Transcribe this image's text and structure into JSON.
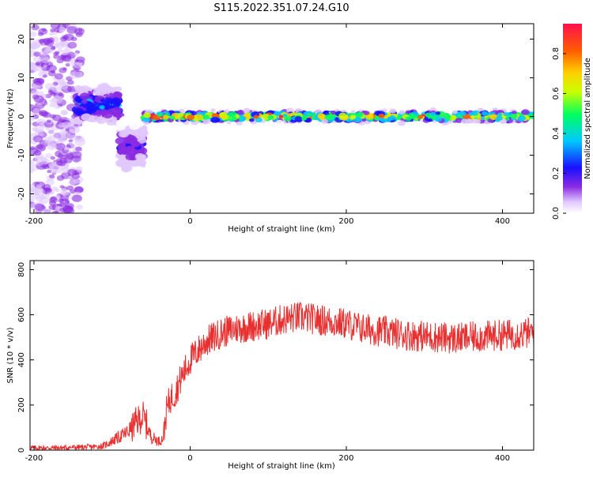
{
  "title": "S115.2022.351.07.24.G10",
  "colors": {
    "snr_line": "#e83030",
    "axis": "#000000",
    "colormap": [
      "#ffffff",
      "#e0c8ff",
      "#8a2be2",
      "#1a10ff",
      "#00c8ff",
      "#00ff60",
      "#c8ff00",
      "#ffd000",
      "#ff5a00",
      "#ff1050"
    ]
  },
  "chart_data": [
    {
      "type": "heatmap",
      "name": "spectrogram",
      "xlabel": "Height of straight line (km)",
      "ylabel": "Frequency (Hz)",
      "xlim": [
        -205,
        440
      ],
      "ylim": [
        -25,
        24
      ],
      "xticks": [
        "-200",
        "0",
        "200",
        "400"
      ],
      "xtick_values": [
        -200,
        0,
        200,
        400
      ],
      "yticks": [
        "20",
        "10",
        "0",
        "-10",
        "-20"
      ],
      "ytick_values": [
        20,
        10,
        0,
        -10,
        -20
      ],
      "colorbar": {
        "label": "Normalized spectral amplitude",
        "range": [
          0,
          0.95
        ],
        "ticks": [
          "0.0",
          "0.2",
          "0.4",
          "0.6",
          "0.8"
        ],
        "tick_values": [
          0.0,
          0.2,
          0.4,
          0.6,
          0.8
        ]
      },
      "features": [
        {
          "x_range": [
            -205,
            -140
          ],
          "freq_range": [
            -25,
            24
          ],
          "amplitude": 0.2
        },
        {
          "x_range": [
            -145,
            -90
          ],
          "freq_center": 3,
          "spread": 8,
          "amplitude": 0.45
        },
        {
          "x_range": [
            -90,
            -60
          ],
          "freq_center": -8,
          "spread": 10,
          "amplitude": 0.3
        },
        {
          "x_range": [
            -60,
            440
          ],
          "freq_center": 0,
          "spread": 2,
          "amplitude": 0.95
        }
      ]
    },
    {
      "type": "line",
      "name": "snr",
      "xlabel": "Height of straight line (km)",
      "ylabel": "SNR (10 * v/v)",
      "xlim": [
        -205,
        440
      ],
      "ylim": [
        0,
        840
      ],
      "xticks": [
        "-200",
        "0",
        "200",
        "400"
      ],
      "xtick_values": [
        -200,
        0,
        200,
        400
      ],
      "yticks": [
        "800",
        "600",
        "400",
        "200",
        "0"
      ],
      "ytick_values": [
        800,
        600,
        400,
        200,
        0
      ],
      "x": [
        -205,
        -180,
        -150,
        -120,
        -110,
        -100,
        -90,
        -80,
        -70,
        -60,
        -50,
        -40,
        -35,
        -30,
        -25,
        -20,
        -10,
        0,
        10,
        20,
        40,
        60,
        80,
        100,
        120,
        140,
        160,
        180,
        200,
        220,
        240,
        260,
        280,
        300,
        320,
        340,
        360,
        380,
        400,
        420,
        440
      ],
      "values": [
        10,
        10,
        12,
        15,
        20,
        40,
        60,
        80,
        120,
        150,
        60,
        40,
        50,
        180,
        230,
        250,
        330,
        400,
        440,
        480,
        520,
        540,
        550,
        560,
        580,
        590,
        580,
        570,
        560,
        540,
        530,
        520,
        510,
        505,
        500,
        495,
        500,
        505,
        510,
        515,
        520
      ]
    }
  ]
}
